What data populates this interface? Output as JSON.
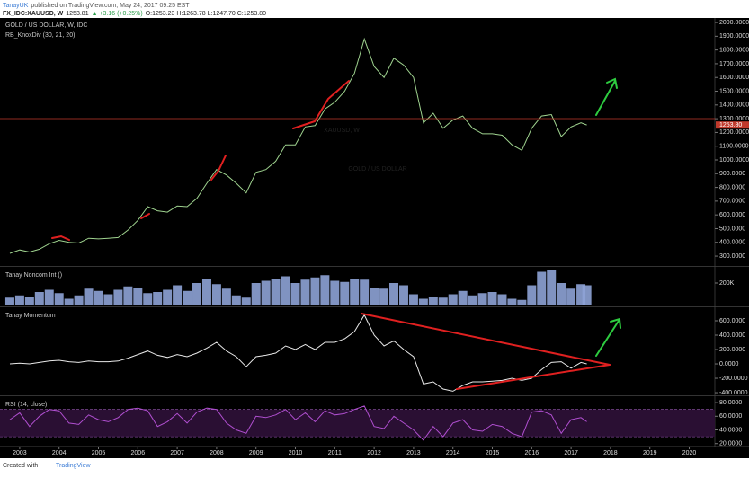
{
  "header": {
    "publisher": "TanayUK",
    "published": "published on TradingView.com, May 24, 2017 09:25 EST",
    "symbol": "FX_IDC:XAUUSD, W",
    "last": "1253.81",
    "change": "▲ +3.16 (+0.25%)",
    "ohlc": "O:1253.23 H:1263.78 L:1247.70 C:1253.80"
  },
  "footer": {
    "created": "Created with",
    "brand": "TradingView"
  },
  "chart_data": [
    {
      "type": "line",
      "title": "GOLD / US DOLLAR, W, IDC",
      "subtitle": "RB_KnoxDiv (30, 21, 20)",
      "watermark": "XAUUSD, W",
      "watermark_sub": "GOLD / US DOLLAR",
      "color": "#9fd38f",
      "x": [
        2002.75,
        2003,
        2003.25,
        2003.5,
        2003.75,
        2004,
        2004.25,
        2004.5,
        2004.75,
        2005,
        2005.25,
        2005.5,
        2005.75,
        2006,
        2006.25,
        2006.5,
        2006.75,
        2007,
        2007.25,
        2007.5,
        2007.75,
        2008,
        2008.25,
        2008.5,
        2008.75,
        2009,
        2009.25,
        2009.5,
        2009.75,
        2010,
        2010.25,
        2010.5,
        2010.75,
        2011,
        2011.25,
        2011.5,
        2011.75,
        2012,
        2012.25,
        2012.5,
        2012.75,
        2013,
        2013.25,
        2013.5,
        2013.75,
        2014,
        2014.25,
        2014.5,
        2014.75,
        2015,
        2015.25,
        2015.5,
        2015.75,
        2016,
        2016.25,
        2016.5,
        2016.75,
        2017,
        2017.25,
        2017.4
      ],
      "values": [
        320,
        345,
        330,
        350,
        390,
        415,
        400,
        395,
        430,
        425,
        430,
        435,
        490,
        560,
        660,
        630,
        620,
        665,
        660,
        720,
        830,
        930,
        890,
        830,
        760,
        910,
        930,
        990,
        1110,
        1110,
        1240,
        1250,
        1370,
        1420,
        1500,
        1630,
        1880,
        1680,
        1600,
        1740,
        1690,
        1600,
        1270,
        1340,
        1230,
        1290,
        1320,
        1230,
        1190,
        1190,
        1180,
        1110,
        1070,
        1230,
        1320,
        1330,
        1170,
        1240,
        1270,
        1254
      ],
      "last_price": {
        "value": 1253.8,
        "label": "1253.80"
      },
      "xlim": [
        2002.5,
        2020.65
      ],
      "xticks": [
        2003,
        2004,
        2005,
        2006,
        2007,
        2008,
        2009,
        2010,
        2011,
        2012,
        2013,
        2014,
        2015,
        2016,
        2017,
        2018,
        2019,
        2020
      ],
      "ylim": [
        235,
        2033
      ],
      "yticks": [
        {
          "value": 300,
          "label": "300.0000"
        },
        {
          "value": 400,
          "label": "400.0000"
        },
        {
          "value": 500,
          "label": "500.0000"
        },
        {
          "value": 600,
          "label": "600.0000"
        },
        {
          "value": 700,
          "label": "700.0000"
        },
        {
          "value": 800,
          "label": "800.0000"
        },
        {
          "value": 900,
          "label": "900.0000"
        },
        {
          "value": 1000,
          "label": "1000.0000"
        },
        {
          "value": 1100,
          "label": "1100.0000"
        },
        {
          "value": 1200,
          "label": "1200.0000"
        },
        {
          "value": 1300,
          "label": "1300.0000"
        },
        {
          "value": 1400,
          "label": "1400.0000"
        },
        {
          "value": 1500,
          "label": "1500.0000"
        },
        {
          "value": 1600,
          "label": "1600.0000"
        },
        {
          "value": 1700,
          "label": "1700.0000"
        },
        {
          "value": 1800,
          "label": "1800.0000"
        },
        {
          "value": 1900,
          "label": "1900.0000"
        },
        {
          "value": 2000,
          "label": "2000.0000"
        }
      ]
    },
    {
      "type": "bar",
      "title": "Tanay Noncom Int ()",
      "color": "#8ea3d6",
      "x": [
        2002.75,
        2003,
        2003.25,
        2003.5,
        2003.75,
        2004,
        2004.25,
        2004.5,
        2004.75,
        2005,
        2005.25,
        2005.5,
        2005.75,
        2006,
        2006.25,
        2006.5,
        2006.75,
        2007,
        2007.25,
        2007.5,
        2007.75,
        2008,
        2008.25,
        2008.5,
        2008.75,
        2009,
        2009.25,
        2009.5,
        2009.75,
        2010,
        2010.25,
        2010.5,
        2010.75,
        2011,
        2011.25,
        2011.5,
        2011.75,
        2012,
        2012.25,
        2012.5,
        2012.75,
        2013,
        2013.25,
        2013.5,
        2013.75,
        2014,
        2014.25,
        2014.5,
        2014.75,
        2015,
        2015.25,
        2015.5,
        2015.75,
        2016,
        2016.25,
        2016.5,
        2016.75,
        2017,
        2017.25,
        2017.4
      ],
      "values": [
        70000,
        90000,
        80000,
        120000,
        140000,
        110000,
        60000,
        90000,
        150000,
        130000,
        100000,
        140000,
        170000,
        160000,
        110000,
        120000,
        140000,
        180000,
        130000,
        200000,
        240000,
        190000,
        150000,
        90000,
        70000,
        200000,
        220000,
        240000,
        260000,
        200000,
        230000,
        250000,
        270000,
        220000,
        210000,
        240000,
        230000,
        160000,
        150000,
        200000,
        180000,
        100000,
        60000,
        80000,
        70000,
        100000,
        130000,
        90000,
        110000,
        120000,
        100000,
        60000,
        50000,
        180000,
        300000,
        320000,
        200000,
        150000,
        190000,
        180000
      ],
      "ylim": [
        0,
        336000
      ],
      "yticks": [
        {
          "value": 200000,
          "label": "200K"
        }
      ]
    },
    {
      "type": "line",
      "title": "Tanay Momentum",
      "color": "#e8e8e8",
      "x": [
        2002.75,
        2003,
        2003.25,
        2003.5,
        2003.75,
        2004,
        2004.25,
        2004.5,
        2004.75,
        2005,
        2005.25,
        2005.5,
        2005.75,
        2006,
        2006.25,
        2006.5,
        2006.75,
        2007,
        2007.25,
        2007.5,
        2007.75,
        2008,
        2008.25,
        2008.5,
        2008.75,
        2009,
        2009.25,
        2009.5,
        2009.75,
        2010,
        2010.25,
        2010.5,
        2010.75,
        2011,
        2011.25,
        2011.5,
        2011.75,
        2012,
        2012.25,
        2012.5,
        2012.75,
        2013,
        2013.25,
        2013.5,
        2013.75,
        2014,
        2014.25,
        2014.5,
        2014.75,
        2015,
        2015.25,
        2015.5,
        2015.75,
        2016,
        2016.25,
        2016.5,
        2016.75,
        2017,
        2017.25,
        2017.4
      ],
      "values": [
        0,
        10,
        0,
        20,
        40,
        50,
        30,
        20,
        40,
        30,
        30,
        40,
        80,
        130,
        180,
        120,
        90,
        130,
        100,
        150,
        220,
        300,
        180,
        100,
        -40,
        100,
        120,
        150,
        250,
        200,
        270,
        200,
        300,
        300,
        350,
        450,
        680,
        400,
        250,
        320,
        200,
        100,
        -280,
        -250,
        -350,
        -380,
        -300,
        -250,
        -250,
        -240,
        -230,
        -200,
        -230,
        -200,
        -80,
        20,
        30,
        -60,
        20,
        0
      ],
      "ylim": [
        -437,
        775
      ],
      "yticks": [
        {
          "value": -400,
          "label": "-400.0000"
        },
        {
          "value": -200,
          "label": "-200.0000"
        },
        {
          "value": 0,
          "label": "0.0000"
        },
        {
          "value": 200,
          "label": "200.0000"
        },
        {
          "value": 400,
          "label": "400.0000"
        },
        {
          "value": 600,
          "label": "600.0000"
        }
      ]
    },
    {
      "type": "line",
      "title": "RSI (14, close)",
      "color": "#b04fd0",
      "band": [
        30,
        70
      ],
      "x": [
        2002.75,
        2003,
        2003.25,
        2003.5,
        2003.75,
        2004,
        2004.25,
        2004.5,
        2004.75,
        2005,
        2005.25,
        2005.5,
        2005.75,
        2006,
        2006.25,
        2006.5,
        2006.75,
        2007,
        2007.25,
        2007.5,
        2007.75,
        2008,
        2008.25,
        2008.5,
        2008.75,
        2009,
        2009.25,
        2009.5,
        2009.75,
        2010,
        2010.25,
        2010.5,
        2010.75,
        2011,
        2011.25,
        2011.5,
        2011.75,
        2012,
        2012.25,
        2012.5,
        2012.75,
        2013,
        2013.25,
        2013.5,
        2013.75,
        2014,
        2014.25,
        2014.5,
        2014.75,
        2015,
        2015.25,
        2015.5,
        2015.75,
        2016,
        2016.25,
        2016.5,
        2016.75,
        2017,
        2017.25,
        2017.4
      ],
      "values": [
        55,
        65,
        45,
        60,
        70,
        68,
        50,
        48,
        62,
        55,
        52,
        58,
        70,
        72,
        68,
        45,
        52,
        64,
        50,
        66,
        72,
        70,
        50,
        40,
        35,
        60,
        58,
        62,
        70,
        55,
        65,
        52,
        68,
        62,
        64,
        70,
        75,
        45,
        42,
        60,
        50,
        40,
        25,
        45,
        30,
        50,
        55,
        40,
        38,
        48,
        45,
        35,
        30,
        66,
        68,
        62,
        35,
        55,
        58,
        52
      ],
      "ylim": [
        17,
        88
      ],
      "yticks": [
        {
          "value": 20,
          "label": "20.0000"
        },
        {
          "value": 40,
          "label": "40.0000"
        },
        {
          "value": 60,
          "label": "60.0000"
        },
        {
          "value": 80,
          "label": "80.0000"
        }
      ]
    }
  ]
}
